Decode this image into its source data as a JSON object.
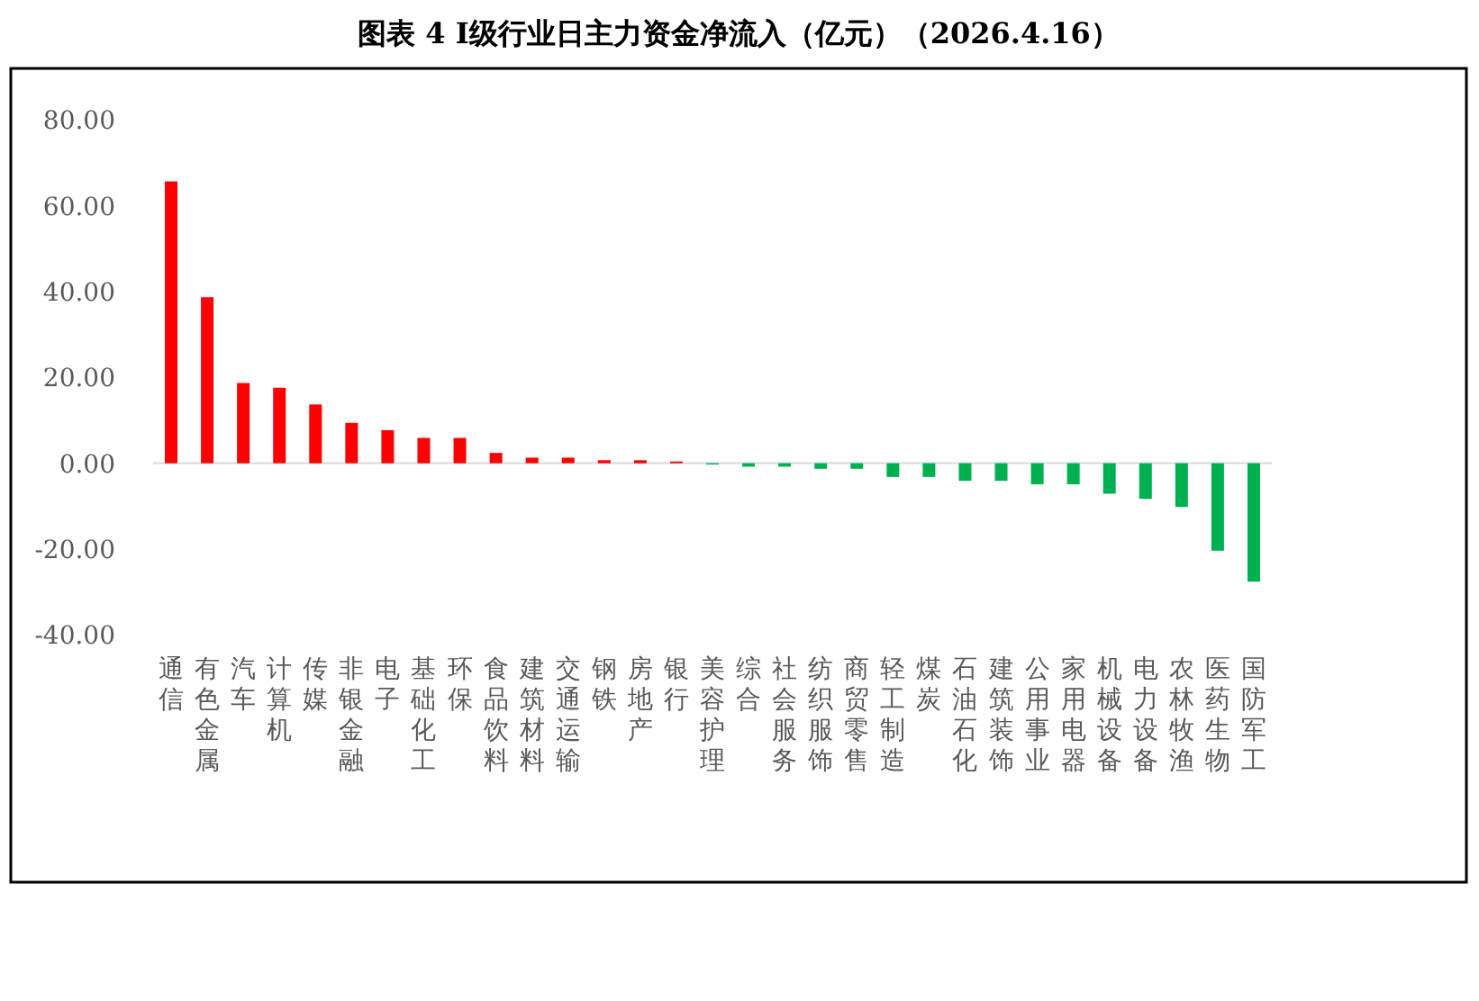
{
  "chart_data": {
    "type": "bar",
    "title": "图表 4  Ⅰ级行业日主力资金净流入（亿元）（2026.4.16）",
    "categories": [
      "通信",
      "有色金属",
      "汽车",
      "计算机",
      "传媒",
      "非银金融",
      "电子",
      "基础化工",
      "环保",
      "食品饮料",
      "建筑材料",
      "交通运输",
      "钢铁",
      "房地产",
      "银行",
      "美容护理",
      "综合",
      "社会服务",
      "纺织服饰",
      "商贸零售",
      "轻工制造",
      "煤炭",
      "石油石化",
      "建筑装饰",
      "公用事业",
      "家用电器",
      "机械设备",
      "电力设备",
      "农林牧渔",
      "医药生物",
      "国防军工"
    ],
    "values": [
      65.7,
      38.7,
      18.7,
      17.6,
      13.7,
      9.4,
      7.7,
      5.9,
      5.9,
      2.4,
      1.3,
      1.3,
      0.7,
      0.7,
      0.4,
      -0.3,
      -0.8,
      -0.8,
      -1.3,
      -1.3,
      -3.2,
      -3.2,
      -4.1,
      -4.1,
      -4.9,
      -4.9,
      -7.1,
      -8.3,
      -10.2,
      -20.4,
      -27.6
    ],
    "colors": [
      "#ff0000",
      "#ff0000",
      "#ff0000",
      "#ff0000",
      "#ff0000",
      "#ff0000",
      "#ff0000",
      "#ff0000",
      "#ff0000",
      "#ff0000",
      "#ff0000",
      "#ff0000",
      "#ff0000",
      "#ff0000",
      "#ff0000",
      "#00b050",
      "#00b050",
      "#00b050",
      "#00b050",
      "#00b050",
      "#00b050",
      "#00b050",
      "#00b050",
      "#00b050",
      "#00b050",
      "#00b050",
      "#00b050",
      "#00b050",
      "#00b050",
      "#00b050",
      "#00b050"
    ],
    "ylim": [
      -40,
      80
    ],
    "yticks": [
      {
        "value": -40,
        "label": "-40.00"
      },
      {
        "value": -20,
        "label": "-20.00"
      },
      {
        "value": 0,
        "label": "0.00"
      },
      {
        "value": 20,
        "label": "20.00"
      },
      {
        "value": 40,
        "label": "40.00"
      },
      {
        "value": 60,
        "label": "60.00"
      },
      {
        "value": 80,
        "label": "80.00"
      }
    ],
    "ref_lines": [
      {
        "axis": "y",
        "value": 0,
        "label": null,
        "color": "#d9d9d9"
      }
    ]
  }
}
